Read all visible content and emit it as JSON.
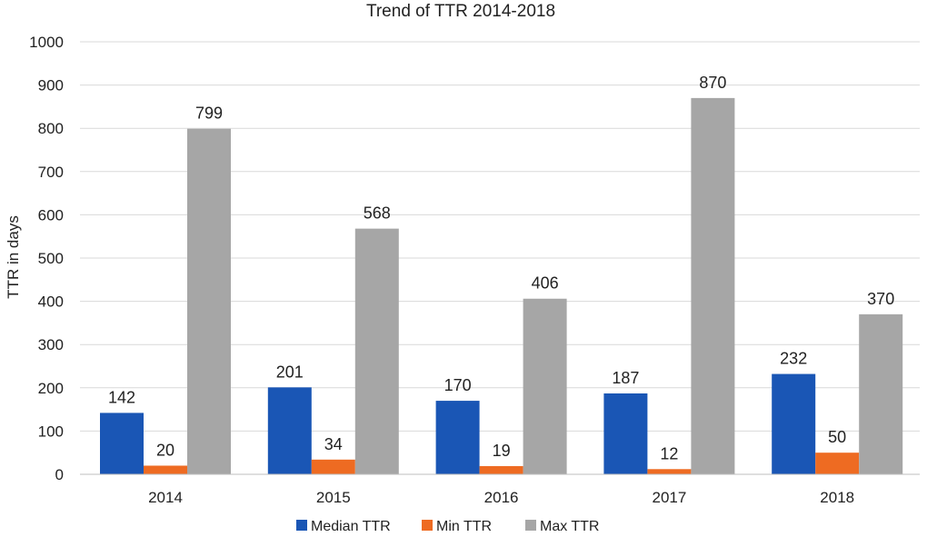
{
  "chart_data": {
    "type": "bar",
    "title": "Trend  of TTR 2014-2018",
    "xlabel": "",
    "ylabel": "TTR in days",
    "ylim": [
      0,
      1000
    ],
    "yticks": [
      0,
      100,
      200,
      300,
      400,
      500,
      600,
      700,
      800,
      900,
      1000
    ],
    "grid": true,
    "legend_position": "bottom",
    "categories": [
      "2014",
      "2015",
      "2016",
      "2017",
      "2018"
    ],
    "series": [
      {
        "name": "Median TTR",
        "color": "#1a56b5",
        "values": [
          142,
          201,
          170,
          187,
          232
        ]
      },
      {
        "name": "Min TTR",
        "color": "#ee6b22",
        "values": [
          20,
          34,
          19,
          12,
          50
        ]
      },
      {
        "name": "Max TTR",
        "color": "#a6a6a6",
        "values": [
          799,
          568,
          406,
          870,
          370
        ]
      }
    ]
  }
}
